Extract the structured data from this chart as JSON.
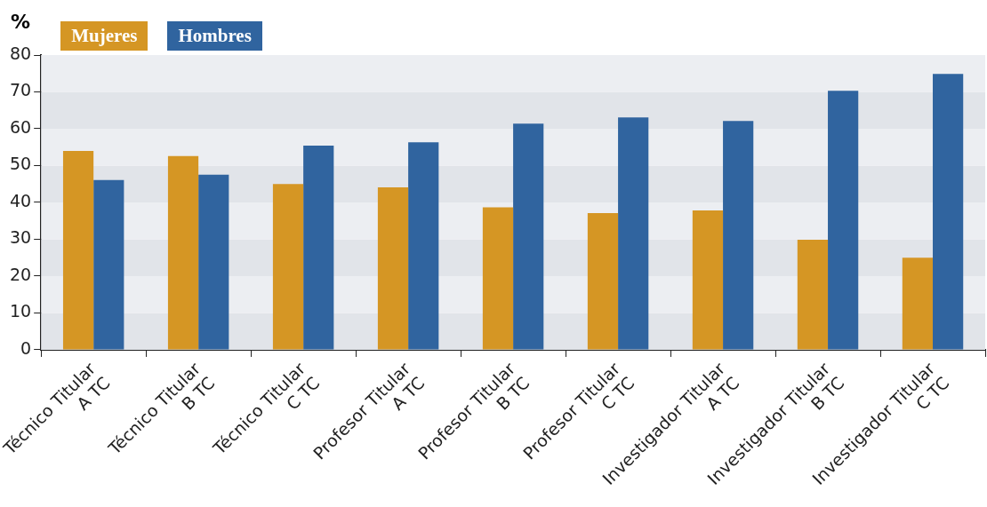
{
  "chart_data": {
    "type": "bar",
    "ylabel": "%",
    "categories": [
      "Técnico Titular\nA TC",
      "Técnico Titular\nB TC",
      "Técnico Titular\nC TC",
      "Profesor Titular\nA TC",
      "Profesor Titular\nB TC",
      "Profesor Titular\nC TC",
      "Investigador Titular\nA TC",
      "Investigador Titular\nB TC",
      "Investigador Titular\nC TC"
    ],
    "series": [
      {
        "name": "Mujeres",
        "color": "#d59624",
        "values": [
          54.0,
          52.6,
          45.0,
          44.1,
          38.7,
          37.1,
          37.8,
          29.9,
          25.0
        ]
      },
      {
        "name": "Hombres",
        "color": "#30649f",
        "values": [
          46.1,
          47.5,
          55.4,
          56.3,
          61.4,
          63.1,
          62.1,
          70.3,
          74.9
        ]
      }
    ],
    "ylim": [
      0,
      80
    ],
    "yticks": [
      0,
      10,
      20,
      30,
      40,
      50,
      60,
      70,
      80
    ],
    "legend": "top left"
  }
}
